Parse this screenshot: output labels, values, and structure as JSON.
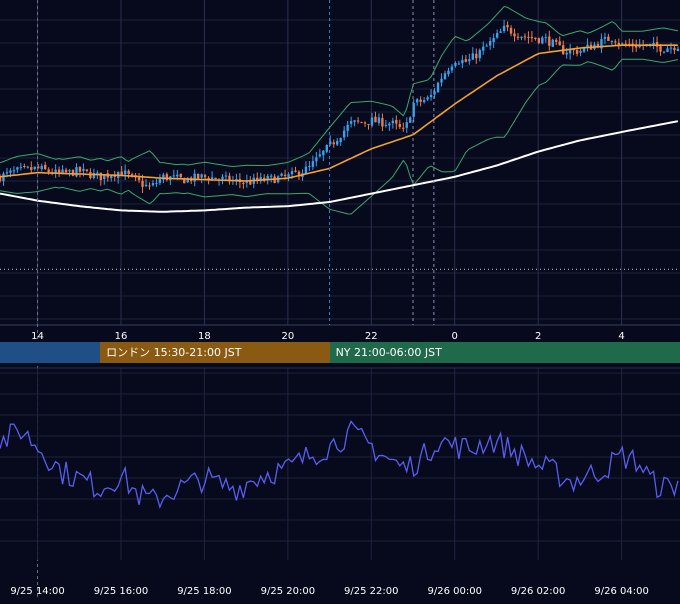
{
  "theme": {
    "background": "#060a1c",
    "grid": "#1c2238",
    "session_tokyo": "#1f4f86",
    "session_london": "#8a5a12",
    "session_ny": "#1f6a4a",
    "bull": "#3aa0f0",
    "bear": "#f07a4a",
    "ma_short": "#f5a030",
    "ma_long": "#ffffff",
    "band": "#3fa66a",
    "oscillator": "#5a5ef0",
    "dotted_level": "#c8c8c8"
  },
  "sessions": [
    {
      "label": ""
    },
    {
      "label": "ロンドン 15:30-21:00 JST"
    },
    {
      "label": "NY 21:00-06:00 JST"
    }
  ],
  "chart_data": [
    {
      "type": "candlestick",
      "title": "",
      "xlabel": "",
      "ylabel": "",
      "x_tick_labels": [
        "14",
        "16",
        "18",
        "20",
        "22",
        "0",
        "2",
        "4"
      ],
      "x_range_hours": [
        13.1,
        29.4
      ],
      "y_range": [
        0,
        100
      ],
      "grid": true,
      "candles_per_hour": 12,
      "candles_note": "close path (relative scale), sampled every 5 min",
      "close_path": [
        [
          13.1,
          44
        ],
        [
          13.5,
          46
        ],
        [
          14.0,
          47
        ],
        [
          14.5,
          45
        ],
        [
          15.0,
          46
        ],
        [
          15.5,
          44
        ],
        [
          16.0,
          46
        ],
        [
          16.3,
          43
        ],
        [
          16.7,
          40
        ],
        [
          17.0,
          44
        ],
        [
          17.5,
          43
        ],
        [
          18.0,
          44
        ],
        [
          18.5,
          43
        ],
        [
          19.0,
          42
        ],
        [
          19.5,
          43
        ],
        [
          20.0,
          44
        ],
        [
          20.5,
          47
        ],
        [
          21.0,
          55
        ],
        [
          21.5,
          63
        ],
        [
          22.0,
          64
        ],
        [
          22.5,
          63
        ],
        [
          22.8,
          60
        ],
        [
          23.0,
          70
        ],
        [
          23.4,
          72
        ],
        [
          23.7,
          80
        ],
        [
          24.0,
          86
        ],
        [
          24.3,
          85
        ],
        [
          24.8,
          91
        ],
        [
          25.2,
          97
        ],
        [
          25.7,
          94
        ],
        [
          26.2,
          93
        ],
        [
          26.6,
          89
        ],
        [
          27.0,
          89
        ],
        [
          27.5,
          92
        ],
        [
          27.8,
          94
        ],
        [
          28.0,
          91
        ],
        [
          28.5,
          91
        ],
        [
          29.0,
          90
        ],
        [
          29.4,
          91
        ]
      ],
      "short_ma_path": [
        [
          13.1,
          44
        ],
        [
          14.0,
          45.5
        ],
        [
          15.0,
          45
        ],
        [
          16.0,
          44.5
        ],
        [
          17.0,
          43.5
        ],
        [
          18.0,
          43
        ],
        [
          19.0,
          42.5
        ],
        [
          20.0,
          43.5
        ],
        [
          21.0,
          47
        ],
        [
          22.0,
          54
        ],
        [
          23.0,
          59
        ],
        [
          24.0,
          70
        ],
        [
          25.0,
          80
        ],
        [
          26.0,
          88
        ],
        [
          27.0,
          90
        ],
        [
          28.0,
          91
        ],
        [
          29.4,
          91
        ]
      ],
      "long_ma_path": [
        [
          13.1,
          38
        ],
        [
          14.0,
          35.5
        ],
        [
          15.0,
          33.5
        ],
        [
          16.0,
          32
        ],
        [
          17.0,
          31.5
        ],
        [
          18.0,
          32
        ],
        [
          19.0,
          33
        ],
        [
          20.0,
          33.5
        ],
        [
          21.0,
          35
        ],
        [
          22.0,
          38
        ],
        [
          23.0,
          41
        ],
        [
          24.0,
          44
        ],
        [
          25.0,
          48
        ],
        [
          26.0,
          53
        ],
        [
          27.0,
          57
        ],
        [
          28.0,
          60
        ],
        [
          29.4,
          64
        ]
      ],
      "band_width": 5,
      "dotted_level": 11,
      "event_lines_hours": [
        21.0,
        23.0,
        23.5
      ]
    },
    {
      "type": "line",
      "title": "",
      "series": [
        {
          "values_note": "oscillator sub-panel"
        }
      ],
      "y_range": [
        0,
        100
      ],
      "grid": true,
      "anchor_path": [
        [
          13.1,
          60
        ],
        [
          13.6,
          68
        ],
        [
          14.0,
          58
        ],
        [
          14.6,
          42
        ],
        [
          15.0,
          38
        ],
        [
          15.5,
          32
        ],
        [
          16.0,
          40
        ],
        [
          16.4,
          28
        ],
        [
          16.8,
          24
        ],
        [
          17.2,
          30
        ],
        [
          17.6,
          34
        ],
        [
          18.0,
          38
        ],
        [
          18.4,
          34
        ],
        [
          18.8,
          32
        ],
        [
          19.2,
          38
        ],
        [
          19.6,
          42
        ],
        [
          20.0,
          44
        ],
        [
          20.5,
          52
        ],
        [
          21.0,
          58
        ],
        [
          21.5,
          66
        ],
        [
          22.0,
          58
        ],
        [
          22.4,
          50
        ],
        [
          22.8,
          44
        ],
        [
          23.2,
          50
        ],
        [
          23.6,
          62
        ],
        [
          24.0,
          58
        ],
        [
          24.4,
          56
        ],
        [
          24.8,
          62
        ],
        [
          25.2,
          58
        ],
        [
          25.6,
          52
        ],
        [
          26.0,
          46
        ],
        [
          26.4,
          42
        ],
        [
          26.8,
          36
        ],
        [
          27.2,
          40
        ],
        [
          27.6,
          44
        ],
        [
          28.0,
          52
        ],
        [
          28.4,
          48
        ],
        [
          28.8,
          34
        ],
        [
          29.2,
          32
        ],
        [
          29.4,
          38
        ]
      ]
    }
  ],
  "x_time_labels": [
    "9/25 14:00",
    "9/25 16:00",
    "9/25 18:00",
    "9/25 20:00",
    "9/25 22:00",
    "9/26 00:00",
    "9/26 02:00",
    "9/26 04:00"
  ]
}
